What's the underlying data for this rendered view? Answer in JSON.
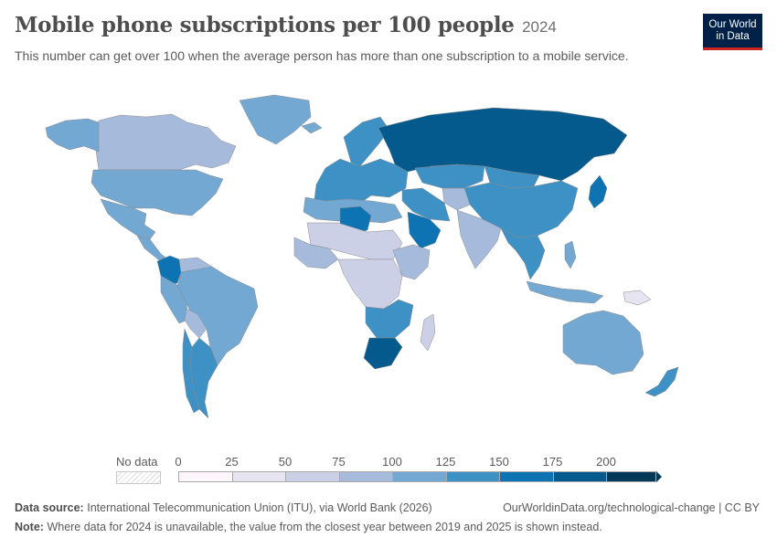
{
  "header": {
    "title": "Mobile phone subscriptions per 100 people",
    "year": "2024",
    "subtitle": "This number can get over 100 when the average person has more than one subscription to a mobile service.",
    "logo_line1": "Our World",
    "logo_line2": "in Data"
  },
  "legend": {
    "no_data_label": "No data",
    "ticks": [
      "0",
      "25",
      "50",
      "75",
      "100",
      "125",
      "150",
      "175",
      "200"
    ],
    "bins": [
      {
        "from": 0,
        "to": 25,
        "color": "#fcf6fb"
      },
      {
        "from": 25,
        "to": 50,
        "color": "#e6e4f1"
      },
      {
        "from": 50,
        "to": 75,
        "color": "#ccd0e6"
      },
      {
        "from": 75,
        "to": 100,
        "color": "#a6bbdb"
      },
      {
        "from": 100,
        "to": 125,
        "color": "#73a8d2"
      },
      {
        "from": 125,
        "to": 150,
        "color": "#3d91c4"
      },
      {
        "from": 150,
        "to": 175,
        "color": "#0d73b2"
      },
      {
        "from": 175,
        "to": 200,
        "color": "#045a8d"
      },
      {
        "from": 200,
        "to": null,
        "color": "#023858"
      }
    ]
  },
  "footer": {
    "source_label": "Data source:",
    "source_text": "International Telecommunication Union (ITU), via World Bank (2026)",
    "url_text": "OurWorldinData.org/technological-change | CC BY",
    "note_label": "Note:",
    "note_text": "Where data for 2024 is unavailable, the value from the closest year between 2019 and 2025 is shown instead."
  },
  "map_regions": [
    {
      "name": "Canada",
      "color": "#a6bbdb"
    },
    {
      "name": "Alaska",
      "color": "#73a8d2"
    },
    {
      "name": "Greenland",
      "color": "#73a8d2"
    },
    {
      "name": "United States",
      "color": "#73a8d2"
    },
    {
      "name": "Mexico",
      "color": "#73a8d2"
    },
    {
      "name": "Central America",
      "color": "#73a8d2"
    },
    {
      "name": "Colombia",
      "color": "#0d73b2"
    },
    {
      "name": "Venezuela",
      "color": "#a6bbdb"
    },
    {
      "name": "Brazil",
      "color": "#73a8d2"
    },
    {
      "name": "Peru",
      "color": "#73a8d2"
    },
    {
      "name": "Bolivia",
      "color": "#a6bbdb"
    },
    {
      "name": "Argentina",
      "color": "#3d91c4"
    },
    {
      "name": "Chile",
      "color": "#3d91c4"
    },
    {
      "name": "Iceland",
      "color": "#73a8d2"
    },
    {
      "name": "Scandinavia",
      "color": "#3d91c4"
    },
    {
      "name": "Europe",
      "color": "#3d91c4"
    },
    {
      "name": "Russia",
      "color": "#045a8d"
    },
    {
      "name": "Kazakhstan",
      "color": "#3d91c4"
    },
    {
      "name": "Mongolia",
      "color": "#3d91c4"
    },
    {
      "name": "China",
      "color": "#3d91c4"
    },
    {
      "name": "Japan",
      "color": "#0d73b2"
    },
    {
      "name": "Central Asia",
      "color": "#a6bbdb"
    },
    {
      "name": "Middle East",
      "color": "#3d91c4"
    },
    {
      "name": "Saudi Arabia",
      "color": "#0d73b2"
    },
    {
      "name": "India",
      "color": "#a6bbdb"
    },
    {
      "name": "Southeast Asia",
      "color": "#3d91c4"
    },
    {
      "name": "Indonesia",
      "color": "#73a8d2"
    },
    {
      "name": "Philippines",
      "color": "#73a8d2"
    },
    {
      "name": "Papua New Guinea",
      "color": "#e6e4f1"
    },
    {
      "name": "Australia",
      "color": "#73a8d2"
    },
    {
      "name": "New Zealand",
      "color": "#3d91c4"
    },
    {
      "name": "North Africa",
      "color": "#73a8d2"
    },
    {
      "name": "Libya",
      "color": "#0d73b2"
    },
    {
      "name": "Sahel",
      "color": "#ccd0e6"
    },
    {
      "name": "West Africa",
      "color": "#a6bbdb"
    },
    {
      "name": "Central Africa",
      "color": "#ccd0e6"
    },
    {
      "name": "East Africa",
      "color": "#a6bbdb"
    },
    {
      "name": "Southern Africa",
      "color": "#3d91c4"
    },
    {
      "name": "South Africa",
      "color": "#045a8d"
    },
    {
      "name": "Madagascar",
      "color": "#ccd0e6"
    }
  ]
}
